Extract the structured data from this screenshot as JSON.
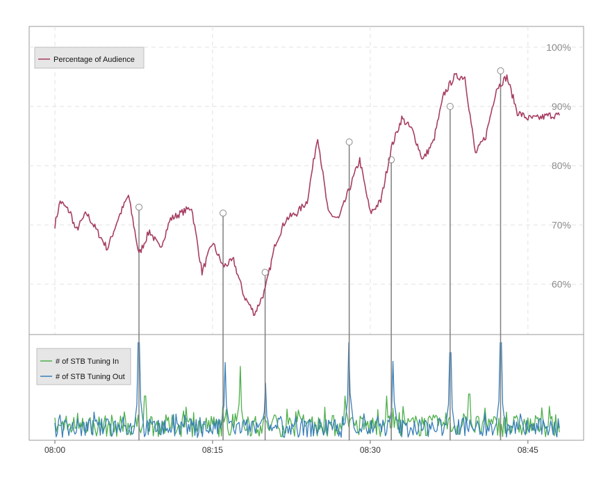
{
  "chart_data": [
    {
      "type": "line",
      "panel": "top",
      "title": "",
      "xlabel": "",
      "ylabel": "",
      "ylim": [
        0.515,
        1.035
      ],
      "y_ticks": [
        0.6,
        0.7,
        0.8,
        0.9,
        1.0
      ],
      "y_tick_labels": [
        "60%",
        "70%",
        "80%",
        "90%",
        "100%"
      ],
      "y_tick_position": "inside-right",
      "grid": true,
      "legend": {
        "placement": "top-left",
        "entries": [
          "Percentage of Audience"
        ]
      },
      "series": [
        {
          "name": "Percentage of Audience",
          "color": "#a63d62",
          "x": [
            0,
            0.5,
            1,
            1.5,
            2,
            3,
            4,
            5,
            6,
            7,
            8,
            9,
            10,
            11,
            12,
            13,
            14,
            15,
            16,
            17,
            18,
            19,
            20,
            21,
            22,
            23,
            24,
            25,
            26,
            27,
            28,
            29,
            30,
            31,
            32,
            33,
            34,
            35,
            36,
            37,
            38,
            39,
            40,
            41,
            42,
            43,
            44,
            45,
            46,
            47,
            48
          ],
          "y": [
            0.7,
            0.74,
            0.73,
            0.72,
            0.69,
            0.72,
            0.69,
            0.66,
            0.71,
            0.75,
            0.65,
            0.69,
            0.66,
            0.71,
            0.72,
            0.73,
            0.62,
            0.67,
            0.63,
            0.64,
            0.58,
            0.55,
            0.59,
            0.67,
            0.71,
            0.72,
            0.74,
            0.85,
            0.72,
            0.71,
            0.76,
            0.81,
            0.72,
            0.74,
            0.83,
            0.88,
            0.86,
            0.81,
            0.84,
            0.92,
            0.95,
            0.95,
            0.82,
            0.85,
            0.93,
            0.95,
            0.89,
            0.88,
            0.88,
            0.885,
            0.885
          ],
          "markers": [
            {
              "x": 8,
              "y": 0.73
            },
            {
              "x": 16,
              "y": 0.72
            },
            {
              "x": 20,
              "y": 0.62
            },
            {
              "x": 28,
              "y": 0.84
            },
            {
              "x": 32,
              "y": 0.81
            },
            {
              "x": 37.6,
              "y": 0.9
            },
            {
              "x": 42.4,
              "y": 0.96
            }
          ]
        }
      ]
    },
    {
      "type": "line",
      "panel": "bottom",
      "title": "",
      "xlabel": "",
      "ylabel": "",
      "ylim": [
        0,
        100
      ],
      "grid": false,
      "x_ticks": [
        0,
        15,
        30,
        45
      ],
      "x_tick_labels": [
        "08:00",
        "08:15",
        "08:30",
        "08:45"
      ],
      "xlim": [
        -2.4,
        50.5
      ],
      "legend": {
        "placement": "top-left",
        "entries": [
          "# of STB Tuning In",
          "# of STB Tuning Out"
        ]
      },
      "series": [
        {
          "name": "# of STB Tuning In",
          "color": "#4daf4a",
          "baseline": 18,
          "amplitude": 14,
          "spikes": [
            {
              "x": 8.6,
              "y": 42
            },
            {
              "x": 17.6,
              "y": 72
            },
            {
              "x": 27.6,
              "y": 42
            },
            {
              "x": 31.6,
              "y": 42
            },
            {
              "x": 39.4,
              "y": 44
            }
          ]
        },
        {
          "name": "# of STB Tuning Out",
          "color": "#377eb8",
          "baseline": 14,
          "amplitude": 12,
          "spikes": [
            {
              "x": 8.0,
              "y": 96
            },
            {
              "x": 16.2,
              "y": 76
            },
            {
              "x": 20.0,
              "y": 55
            },
            {
              "x": 28.0,
              "y": 96
            },
            {
              "x": 32.2,
              "y": 77
            },
            {
              "x": 37.6,
              "y": 86
            },
            {
              "x": 42.4,
              "y": 96
            }
          ]
        }
      ],
      "event_lines": [
        8,
        16,
        20,
        28,
        32,
        37.6,
        42.4
      ]
    }
  ]
}
